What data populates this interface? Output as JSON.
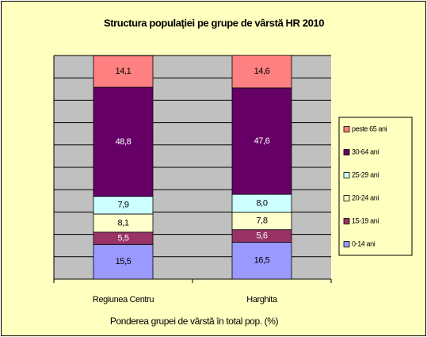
{
  "chart_data": {
    "type": "stacked_bar",
    "title": "Structura populaţiei pe grupe de vârstă HR 2010",
    "x_label": "Ponderea grupei de vârstă în total pop. (%)",
    "categories": [
      "Regiunea Centru",
      "Harghita"
    ],
    "series": [
      {
        "name": "0-14 ani",
        "color": "#9999ff",
        "values": [
          15.5,
          16.5
        ],
        "value_labels": [
          "15,5",
          "16,5"
        ]
      },
      {
        "name": "15-19 ani",
        "color": "#993366",
        "values": [
          5.5,
          5.6
        ],
        "value_labels": [
          "5,5",
          "5,6"
        ]
      },
      {
        "name": "20-24 ani",
        "color": "#ffffcc",
        "values": [
          8.1,
          7.8
        ],
        "value_labels": [
          "8,1",
          "7,8"
        ]
      },
      {
        "name": "25-29 ani",
        "color": "#ccffff",
        "values": [
          7.9,
          8.0
        ],
        "value_labels": [
          "7,9",
          "8,0"
        ]
      },
      {
        "name": "30-64 ani",
        "color": "#660066",
        "values": [
          48.8,
          47.6
        ],
        "value_labels": [
          "48,8",
          "47,6"
        ]
      },
      {
        "name": "peste 65 ani",
        "color": "#ff8080",
        "values": [
          14.1,
          14.6
        ],
        "value_labels": [
          "14,1",
          "14,6"
        ]
      }
    ],
    "ylim": [
      0,
      100
    ],
    "yticks": [
      0,
      10,
      20,
      30,
      40,
      50,
      60,
      70,
      80,
      90,
      100
    ],
    "grid": true,
    "legend": "right"
  }
}
